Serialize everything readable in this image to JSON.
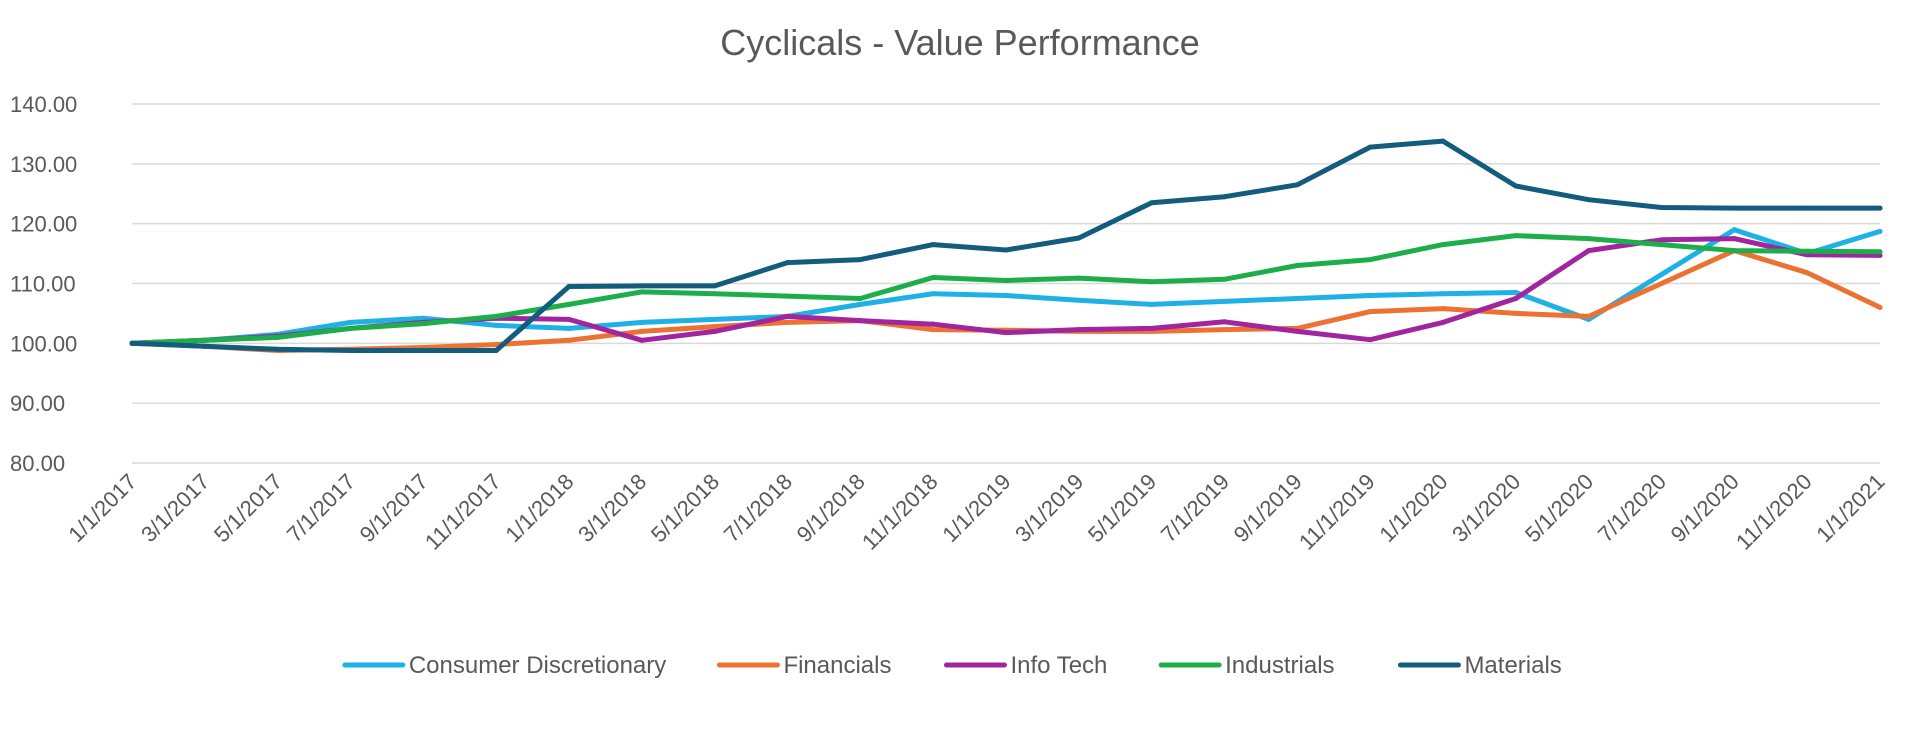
{
  "chart_data": {
    "type": "line",
    "title": "Cyclicals - Value Performance",
    "xlabel": "",
    "ylabel": "",
    "ylim": [
      80,
      140
    ],
    "yticks": [
      "80.00",
      "90.00",
      "100.00",
      "110.00",
      "120.00",
      "130.00",
      "140.00"
    ],
    "grid": true,
    "legend_position": "bottom",
    "x": [
      "1/1/2017",
      "3/1/2017",
      "5/1/2017",
      "7/1/2017",
      "9/1/2017",
      "11/1/2017",
      "1/1/2018",
      "3/1/2018",
      "5/1/2018",
      "7/1/2018",
      "9/1/2018",
      "11/1/2018",
      "1/1/2019",
      "3/1/2019",
      "5/1/2019",
      "7/1/2019",
      "9/1/2019",
      "11/1/2019",
      "1/1/2020",
      "3/1/2020",
      "5/1/2020",
      "7/1/2020",
      "9/1/2020",
      "11/1/2020",
      "1/1/2021"
    ],
    "series": [
      {
        "name": "Consumer Discretionary",
        "color": "#1FB0E8",
        "values": [
          100,
          100.5,
          101.5,
          103.5,
          104.2,
          103,
          102.5,
          103.5,
          104,
          104.5,
          106.5,
          108.3,
          108,
          107.2,
          106.5,
          107,
          107.5,
          108,
          108.3,
          108.5,
          104,
          111.5,
          119,
          115,
          118.7
        ]
      },
      {
        "name": "Financials",
        "color": "#ED7232",
        "values": [
          100,
          99.5,
          98.8,
          99,
          99.3,
          99.8,
          100.5,
          102,
          102.8,
          103.5,
          103.8,
          102.3,
          102.2,
          102,
          102,
          102.3,
          102.5,
          105.3,
          105.8,
          105,
          104.5,
          110,
          115.5,
          111.8,
          106
        ]
      },
      {
        "name": "Info Tech",
        "color": "#A0259E",
        "values": [
          100,
          100.5,
          101.2,
          102.5,
          103.5,
          104.2,
          104,
          100.5,
          102,
          104.5,
          103.8,
          103.2,
          101.8,
          102.3,
          102.5,
          103.6,
          102,
          100.6,
          103.5,
          107.5,
          115.5,
          117.3,
          117.5,
          114.8,
          114.7
        ]
      },
      {
        "name": "Industrials",
        "color": "#1DAE4B",
        "values": [
          100,
          100.5,
          101,
          102.5,
          103.3,
          104.5,
          106.5,
          108.6,
          108.3,
          107.9,
          107.5,
          111,
          110.5,
          110.9,
          110.3,
          110.7,
          113,
          114,
          116.5,
          118,
          117.5,
          116.5,
          115.5,
          115.4,
          115.3
        ]
      },
      {
        "name": "Materials",
        "color": "#135C7E",
        "values": [
          100,
          99.5,
          99,
          98.8,
          98.8,
          98.8,
          109.5,
          109.6,
          109.6,
          113.5,
          114,
          116.5,
          115.6,
          117.6,
          123.5,
          124.5,
          126.5,
          132.8,
          133.8,
          126.3,
          124,
          122.7,
          122.6,
          122.6,
          122.6
        ]
      }
    ]
  }
}
